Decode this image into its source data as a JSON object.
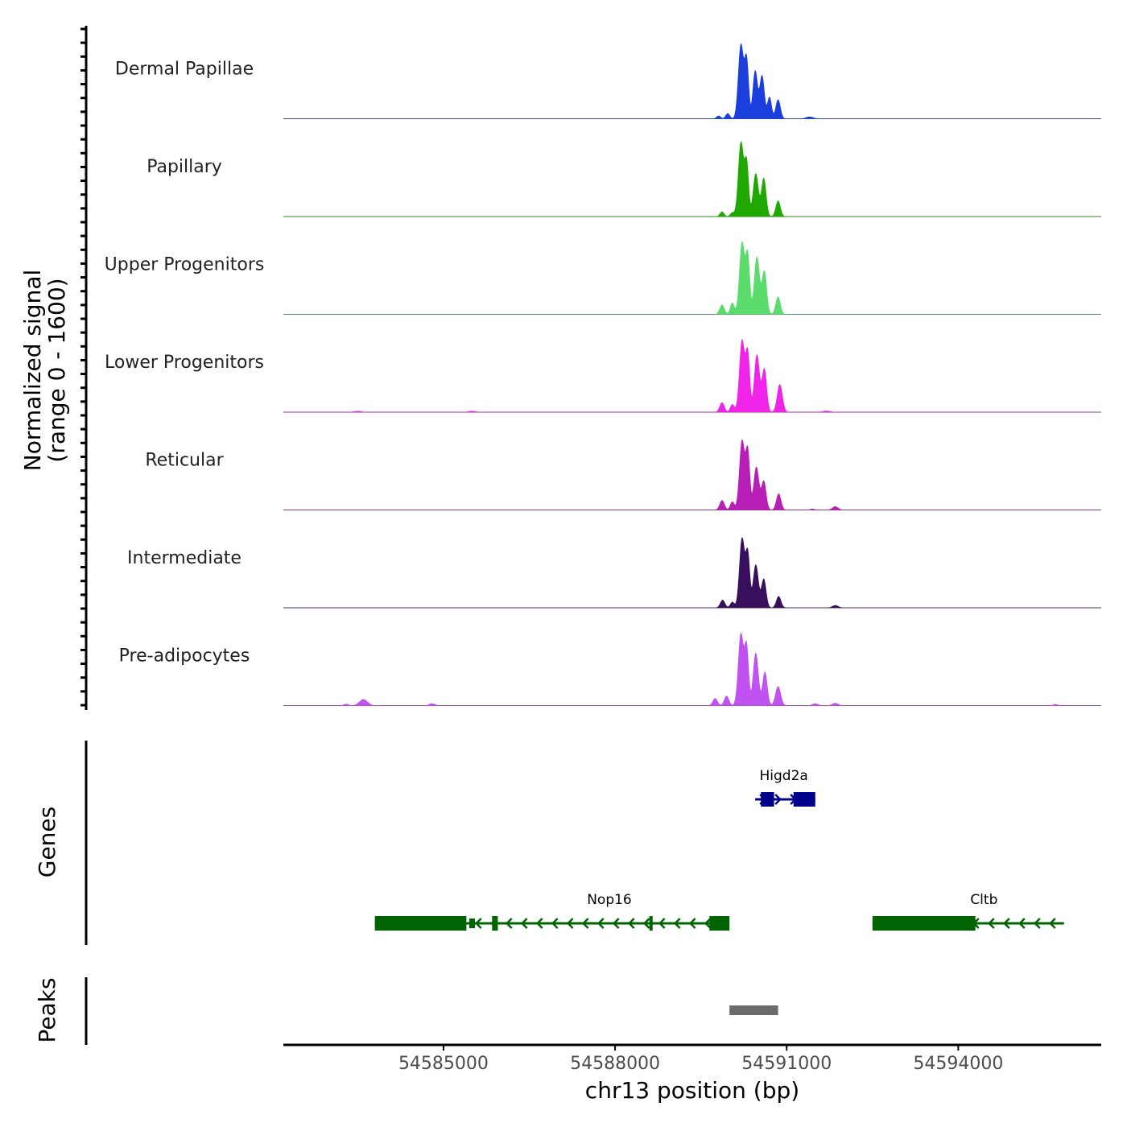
{
  "chart_data": {
    "type": "area",
    "title": "",
    "chromosome": "chr13",
    "xlabel": "chr13 position (bp)",
    "xlim": [
      54582200,
      54596500
    ],
    "x_ticks": [
      54585000,
      54588000,
      54591000,
      54594000
    ],
    "x_tick_labels": [
      "54585000",
      "54588000",
      "54591000",
      "54594000"
    ],
    "coverage": {
      "ylabel_line1": "Normalized signal",
      "ylabel_line2": "(range 0 - 1600)",
      "ylim": [
        0,
        1600
      ],
      "tracks": [
        {
          "name": "Dermal Papillae",
          "color": "#1a3fdc",
          "peaks": [
            [
              54589810,
              60,
              35
            ],
            [
              54589970,
              110,
              35
            ],
            [
              54590200,
              1550,
              45
            ],
            [
              54590300,
              1200,
              35
            ],
            [
              54590450,
              1000,
              40
            ],
            [
              54590570,
              900,
              40
            ],
            [
              54590700,
              450,
              35
            ],
            [
              54590850,
              400,
              40
            ],
            [
              54591400,
              40,
              60
            ]
          ],
          "secondary": []
        },
        {
          "name": "Papillary",
          "color": "#1ea800",
          "peaks": [
            [
              54589870,
              100,
              35
            ],
            [
              54590050,
              80,
              35
            ],
            [
              54590200,
              1550,
              45
            ],
            [
              54590300,
              1100,
              35
            ],
            [
              54590460,
              900,
              45
            ],
            [
              54590600,
              800,
              40
            ],
            [
              54590850,
              330,
              40
            ]
          ],
          "secondary": []
        },
        {
          "name": "Upper Progenitors",
          "color": "#5cdc6c",
          "peaks": [
            [
              54589870,
              200,
              40
            ],
            [
              54590050,
              240,
              35
            ],
            [
              54590220,
              1500,
              45
            ],
            [
              54590320,
              1200,
              35
            ],
            [
              54590480,
              1200,
              45
            ],
            [
              54590610,
              900,
              40
            ],
            [
              54590850,
              370,
              40
            ]
          ],
          "secondary": []
        },
        {
          "name": "Lower Progenitors",
          "color": "#f023e8",
          "peaks": [
            [
              54589870,
              200,
              40
            ],
            [
              54590050,
              160,
              35
            ],
            [
              54590220,
              1500,
              45
            ],
            [
              54590320,
              1200,
              35
            ],
            [
              54590480,
              1200,
              45
            ],
            [
              54590610,
              900,
              40
            ],
            [
              54590880,
              580,
              45
            ]
          ],
          "secondary": [
            [
              54583500,
              20,
              60
            ],
            [
              54585500,
              20,
              60
            ],
            [
              54591700,
              25,
              60
            ]
          ]
        },
        {
          "name": "Reticular",
          "color": "#b71fb7",
          "peaks": [
            [
              54589870,
              200,
              40
            ],
            [
              54590050,
              170,
              35
            ],
            [
              54590220,
              1450,
              45
            ],
            [
              54590320,
              1200,
              35
            ],
            [
              54590470,
              900,
              45
            ],
            [
              54590600,
              600,
              40
            ],
            [
              54590860,
              340,
              40
            ]
          ],
          "secondary": [
            [
              54591850,
              70,
              50
            ],
            [
              54591450,
              20,
              40
            ]
          ]
        },
        {
          "name": "Intermediate",
          "color": "#370f5c",
          "peaks": [
            [
              54589880,
              160,
              40
            ],
            [
              54590050,
              120,
              35
            ],
            [
              54590220,
              1450,
              45
            ],
            [
              54590320,
              1100,
              35
            ],
            [
              54590460,
              900,
              45
            ],
            [
              54590600,
              600,
              40
            ],
            [
              54590860,
              240,
              40
            ]
          ],
          "secondary": [
            [
              54591850,
              50,
              50
            ]
          ]
        },
        {
          "name": "Pre-adipocytes",
          "color": "#c152f2",
          "peaks": [
            [
              54589750,
              150,
              40
            ],
            [
              54589950,
              200,
              40
            ],
            [
              54590200,
              1500,
              45
            ],
            [
              54590300,
              1200,
              35
            ],
            [
              54590460,
              1100,
              45
            ],
            [
              54590620,
              700,
              40
            ],
            [
              54590850,
              400,
              45
            ]
          ],
          "secondary": [
            [
              54583600,
              130,
              70
            ],
            [
              54583300,
              30,
              40
            ],
            [
              54584800,
              40,
              50
            ],
            [
              54591500,
              40,
              50
            ],
            [
              54591850,
              50,
              50
            ],
            [
              54595700,
              25,
              40
            ]
          ]
        }
      ]
    },
    "genes": {
      "ylabel": "Genes",
      "items": [
        {
          "name": "Higd2a",
          "strand": "+",
          "color": "#00008b",
          "start": 54590450,
          "end": 54591180,
          "row": 1,
          "exons": [
            [
              54590550,
              54590780,
              "thick"
            ],
            [
              54591120,
              54591500,
              "thick"
            ]
          ],
          "label_pos": 54590950
        },
        {
          "name": "Nop16",
          "strand": "-",
          "color": "#006400",
          "start": 54583800,
          "end": 54590000,
          "row": 2,
          "exons": [
            [
              54583800,
              54585400,
              "thick"
            ],
            [
              54585450,
              54585550,
              "thin"
            ],
            [
              54585850,
              54585950,
              "thick"
            ],
            [
              54588600,
              54588650,
              "thick"
            ],
            [
              54589650,
              54590000,
              "thick"
            ]
          ],
          "label_pos": 54587900
        },
        {
          "name": "Cltb",
          "strand": "-",
          "color": "#006400",
          "start": 54592500,
          "end": 54595850,
          "row": 2,
          "exons": [
            [
              54592500,
              54594000,
              "thick"
            ],
            [
              54593800,
              54594300,
              "thick"
            ]
          ],
          "label_pos": 54594450
        }
      ]
    },
    "peaks": {
      "ylabel": "Peaks",
      "regions": [
        [
          54590000,
          54590850
        ]
      ],
      "color": "#6b6b6b"
    }
  }
}
